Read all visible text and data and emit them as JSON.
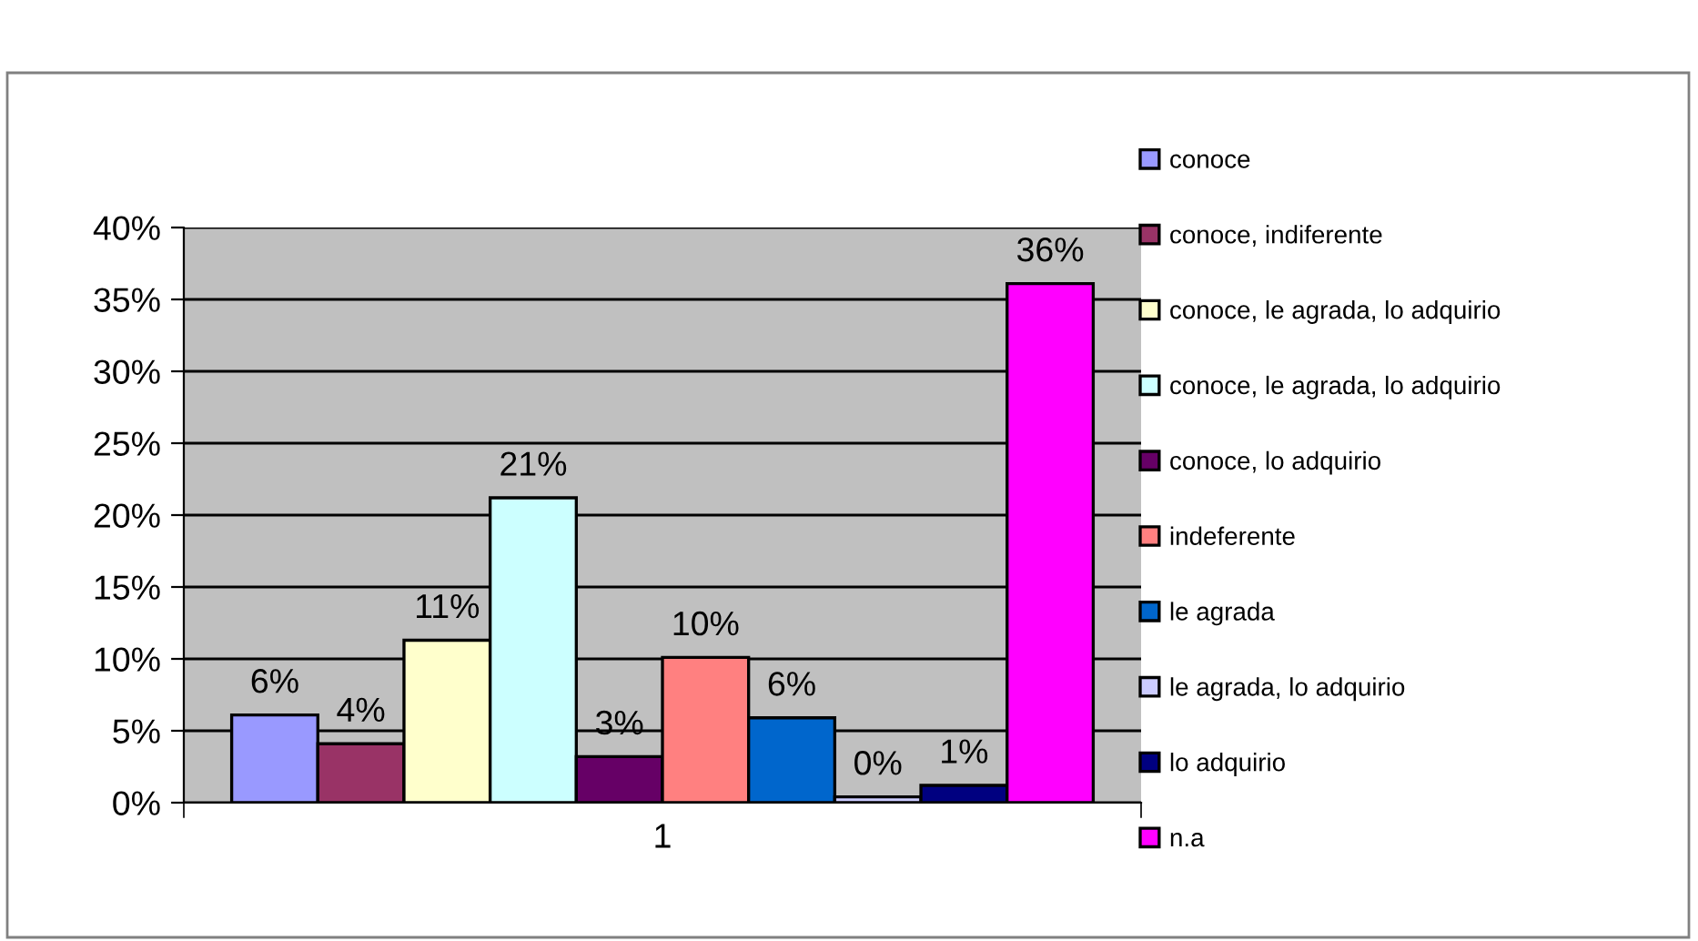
{
  "chart_data": {
    "type": "bar",
    "categories": [
      "1"
    ],
    "series": [
      {
        "name": "conoce",
        "color": "#9999ff",
        "values": [
          6.1
        ],
        "value_labels": [
          "6%"
        ]
      },
      {
        "name": "conoce, indiferente",
        "color": "#993366",
        "values": [
          4.1
        ],
        "value_labels": [
          "4%"
        ]
      },
      {
        "name": "conoce, le agrada, lo adquirio",
        "color": "#ffffcc",
        "values": [
          11.3
        ],
        "value_labels": [
          "11%"
        ]
      },
      {
        "name": "conoce, le agrada, lo adquirio",
        "color": "#ccffff",
        "values": [
          21.2
        ],
        "value_labels": [
          "21%"
        ]
      },
      {
        "name": "conoce, lo adquirio",
        "color": "#660066",
        "values": [
          3.2
        ],
        "value_labels": [
          "3%"
        ]
      },
      {
        "name": "indeferente",
        "color": "#ff8080",
        "values": [
          10.1
        ],
        "value_labels": [
          "10%"
        ]
      },
      {
        "name": "le agrada",
        "color": "#0066cc",
        "values": [
          5.9
        ],
        "value_labels": [
          "6%"
        ]
      },
      {
        "name": "le agrada, lo adquirio",
        "color": "#ccccff",
        "values": [
          0.4
        ],
        "value_labels": [
          "0%"
        ]
      },
      {
        "name": "lo adquirio",
        "color": "#000080",
        "values": [
          1.2
        ],
        "value_labels": [
          "1%"
        ]
      },
      {
        "name": "n.a",
        "color": "#ff00ff",
        "values": [
          36.1
        ],
        "value_labels": [
          "36%"
        ]
      }
    ],
    "ylim": [
      0,
      40
    ],
    "yticks": [
      {
        "value": 0,
        "label": "0%"
      },
      {
        "value": 5,
        "label": "5%"
      },
      {
        "value": 10,
        "label": "10%"
      },
      {
        "value": 15,
        "label": "15%"
      },
      {
        "value": 20,
        "label": "20%"
      },
      {
        "value": 25,
        "label": "25%"
      },
      {
        "value": 30,
        "label": "30%"
      },
      {
        "value": 35,
        "label": "35%"
      },
      {
        "value": 40,
        "label": "40%"
      }
    ],
    "grid": "y",
    "legend": "right"
  }
}
